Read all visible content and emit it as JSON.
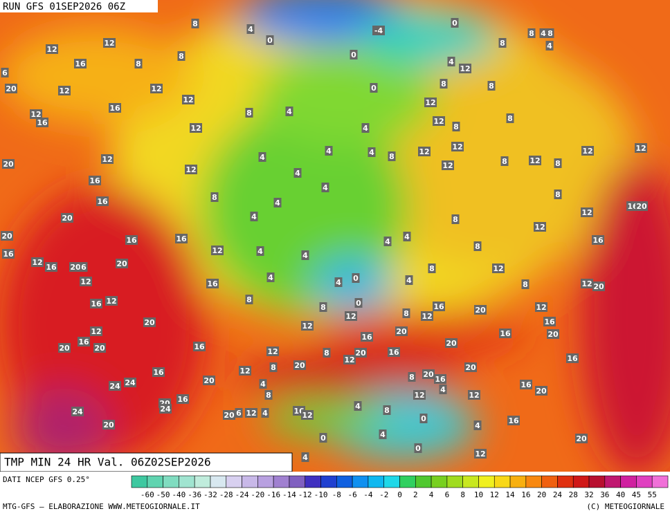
{
  "header": {
    "run": "RUN GFS 01SEP2026 06Z"
  },
  "map": {
    "title": "TMP MIN 24 HR Val. 06Z02SEP2026",
    "labels": [
      8,
      4,
      0,
      -4,
      0,
      8,
      4,
      8,
      4,
      8,
      12,
      12,
      8,
      8,
      16,
      6,
      20,
      12,
      12,
      12,
      16,
      0,
      4,
      12,
      0,
      8,
      8,
      12,
      12,
      16,
      8,
      4,
      12,
      4,
      12,
      8,
      8,
      4,
      4,
      8,
      12,
      12,
      12,
      12,
      4,
      12,
      20,
      12,
      4,
      12,
      8,
      12,
      8,
      16,
      4,
      8,
      8,
      16,
      4,
      16,
      20,
      4,
      20,
      8,
      12,
      12,
      20,
      16,
      16,
      4,
      4,
      16,
      16,
      12,
      4,
      4,
      8,
      12,
      16,
      20,
      6,
      20,
      8,
      12,
      12,
      4,
      4,
      0,
      4,
      8,
      16,
      12,
      20,
      16,
      12,
      8,
      8,
      0,
      12,
      8,
      12,
      16,
      20,
      12,
      16,
      20,
      12,
      12,
      20,
      16,
      16,
      20,
      16,
      20,
      20,
      16,
      12,
      8,
      12,
      20,
      16,
      20,
      20,
      8,
      12,
      16,
      20,
      16,
      20,
      8,
      20,
      16,
      4,
      24,
      24,
      4,
      16,
      20,
      8,
      12,
      12,
      20,
      16,
      24,
      4,
      8,
      20,
      6,
      12,
      4,
      16,
      12,
      24,
      0,
      16,
      4,
      20,
      0,
      4,
      20,
      0,
      12,
      4
    ]
  },
  "legend": {
    "source": "DATI NCEP GFS 0.25°",
    "ticks": [
      -60,
      -50,
      -40,
      -36,
      -32,
      -28,
      -24,
      -20,
      -16,
      -14,
      -12,
      -10,
      -8,
      -6,
      -4,
      -2,
      0,
      2,
      4,
      6,
      8,
      10,
      12,
      14,
      16,
      20,
      24,
      28,
      32,
      36,
      40,
      45,
      55
    ],
    "colors": [
      "#3ec8a0",
      "#60d4b0",
      "#80dcc0",
      "#a0e4d0",
      "#c0ecdc",
      "#d8e8f0",
      "#d8d0f0",
      "#c8b8e8",
      "#b8a0e0",
      "#a080d0",
      "#8060c0",
      "#4030c0",
      "#2040d0",
      "#1060e0",
      "#1090f0",
      "#10b8f0",
      "#20d8e8",
      "#30d060",
      "#50c830",
      "#78d020",
      "#a0dc20",
      "#c8e820",
      "#f0f020",
      "#f8d818",
      "#f8b010",
      "#f88810",
      "#f06010",
      "#e03010",
      "#d01818",
      "#b81030",
      "#c01870",
      "#d020a0",
      "#e040c0",
      "#f070d8"
    ]
  },
  "footer": {
    "left": "MTG-GFS — ELABORAZIONE WWW.METEOGIORNALE.IT",
    "right": "(C) METEOGIORNALE"
  }
}
